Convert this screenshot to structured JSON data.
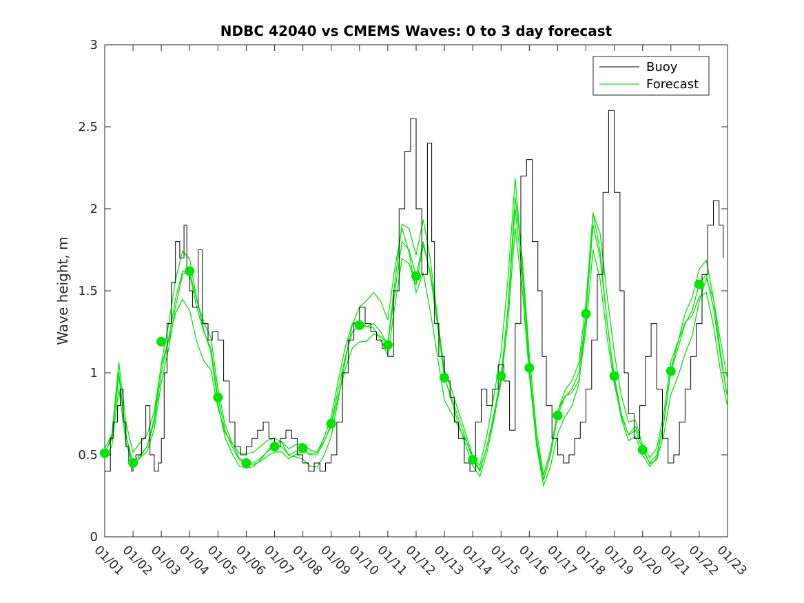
{
  "chart_data": {
    "type": "line",
    "title": "NDBC 42040 vs CMEMS Waves: 0 to 3 day forecast",
    "xlabel": "",
    "ylabel": "Wave height, m",
    "xlim": [
      0,
      22
    ],
    "ylim": [
      0,
      3
    ],
    "x_tick_labels": [
      "01/01",
      "01/02",
      "01/03",
      "01/04",
      "01/05",
      "01/06",
      "01/07",
      "01/08",
      "01/09",
      "01/10",
      "01/11",
      "01/12",
      "01/13",
      "01/14",
      "01/15",
      "01/16",
      "01/17",
      "01/18",
      "01/19",
      "01/20",
      "01/21",
      "01/22",
      "01/23"
    ],
    "y_ticks": [
      0,
      0.5,
      1,
      1.5,
      2,
      2.5,
      3
    ],
    "y_tick_labels": [
      "0",
      "0.5",
      "1",
      "1.5",
      "2",
      "2.5",
      "3"
    ],
    "legend": {
      "position": "top-right",
      "entries": [
        "Buoy",
        "Forecast"
      ]
    },
    "colors": {
      "buoy": "#000000",
      "forecast": "#00e600",
      "axis": "#262626"
    },
    "series": [
      {
        "name": "Buoy",
        "x": [
          0,
          0.2,
          0.3,
          0.45,
          0.55,
          0.65,
          0.75,
          0.85,
          0.95,
          1.0,
          1.1,
          1.3,
          1.45,
          1.6,
          1.75,
          1.9,
          2.0,
          2.1,
          2.2,
          2.35,
          2.5,
          2.65,
          2.8,
          2.9,
          3.0,
          3.1,
          3.3,
          3.45,
          3.65,
          3.8,
          4.0,
          4.2,
          4.4,
          4.6,
          4.8,
          5.0,
          5.2,
          5.4,
          5.6,
          5.8,
          6.0,
          6.2,
          6.4,
          6.6,
          6.8,
          7.0,
          7.2,
          7.4,
          7.6,
          7.8,
          8.0,
          8.2,
          8.4,
          8.6,
          8.8,
          9.0,
          9.2,
          9.4,
          9.6,
          9.8,
          10.0,
          10.2,
          10.4,
          10.6,
          10.8,
          11.0,
          11.2,
          11.4,
          11.55,
          11.65,
          11.8,
          12.0,
          12.2,
          12.35,
          12.5,
          12.7,
          12.9,
          13.1,
          13.3,
          13.5,
          13.7,
          13.9,
          14.1,
          14.3,
          14.5,
          14.7,
          14.9,
          15.1,
          15.3,
          15.45,
          15.6,
          15.8,
          16.0,
          16.2,
          16.4,
          16.6,
          16.8,
          17.0,
          17.2,
          17.4,
          17.6,
          17.8,
          18.0,
          18.2,
          18.35,
          18.5,
          18.7,
          18.9,
          19.1,
          19.3,
          19.5,
          19.7,
          19.9,
          20.1,
          20.3,
          20.5,
          20.7,
          20.9,
          21.1,
          21.3,
          21.5,
          21.7,
          21.85
        ],
        "values": [
          0.4,
          0.6,
          0.7,
          0.8,
          0.9,
          0.7,
          0.55,
          0.45,
          0.4,
          0.45,
          0.5,
          0.6,
          0.8,
          0.5,
          0.4,
          0.45,
          0.6,
          1.0,
          1.3,
          1.55,
          1.8,
          1.7,
          1.9,
          1.6,
          1.5,
          1.4,
          1.75,
          1.3,
          1.2,
          1.25,
          1.2,
          0.95,
          0.7,
          0.55,
          0.5,
          0.55,
          0.6,
          0.65,
          0.7,
          0.6,
          0.55,
          0.6,
          0.65,
          0.6,
          0.5,
          0.45,
          0.4,
          0.45,
          0.4,
          0.45,
          0.5,
          0.7,
          1.0,
          1.2,
          1.3,
          1.4,
          1.3,
          1.25,
          1.2,
          1.15,
          1.1,
          1.5,
          2.0,
          2.35,
          2.55,
          2.0,
          1.6,
          2.4,
          1.8,
          1.3,
          1.1,
          0.95,
          0.85,
          0.7,
          0.6,
          0.45,
          0.4,
          0.7,
          0.9,
          0.8,
          0.9,
          1.05,
          0.95,
          0.65,
          1.3,
          2.2,
          2.3,
          1.8,
          1.5,
          1.1,
          0.8,
          0.6,
          0.5,
          0.45,
          0.5,
          0.6,
          0.7,
          0.9,
          1.2,
          1.6,
          2.1,
          2.6,
          2.1,
          1.5,
          1.0,
          0.75,
          0.6,
          0.8,
          1.1,
          1.3,
          0.9,
          0.6,
          0.45,
          0.5,
          0.7,
          0.9,
          1.1,
          1.3,
          1.6,
          1.9,
          2.05,
          1.9,
          1.7
        ]
      },
      {
        "name": "Forecast",
        "x": [
          0,
          0.25,
          0.5,
          0.75,
          1.0,
          1.25,
          1.5,
          1.75,
          2.0,
          2.25,
          2.5,
          2.75,
          3.0,
          3.25,
          3.5,
          3.75,
          4.0,
          4.25,
          4.5,
          4.75,
          5.0,
          5.25,
          5.5,
          5.75,
          6.0,
          6.25,
          6.5,
          6.75,
          7.0,
          7.25,
          7.5,
          7.75,
          8.0,
          8.25,
          8.5,
          8.75,
          9.0,
          9.25,
          9.5,
          9.75,
          10.0,
          10.25,
          10.5,
          10.75,
          11.0,
          11.25,
          11.5,
          11.75,
          12.0,
          12.25,
          12.5,
          12.75,
          13.0,
          13.25,
          13.5,
          13.75,
          14.0,
          14.25,
          14.5,
          14.75,
          15.0,
          15.25,
          15.5,
          15.75,
          16.0,
          16.25,
          16.5,
          16.75,
          17.0,
          17.25,
          17.5,
          17.75,
          18.0,
          18.25,
          18.5,
          18.75,
          19.0,
          19.25,
          19.5,
          19.75,
          20.0,
          20.25,
          20.5,
          20.75,
          21.0,
          21.25,
          21.5,
          21.75,
          22.0
        ],
        "values": [
          0.51,
          0.6,
          0.98,
          0.62,
          0.45,
          0.5,
          0.55,
          0.7,
          1.0,
          1.2,
          1.45,
          1.62,
          1.6,
          1.4,
          1.25,
          1.15,
          0.85,
          0.65,
          0.55,
          0.47,
          0.45,
          0.45,
          0.48,
          0.52,
          0.55,
          0.55,
          0.5,
          0.52,
          0.53,
          0.5,
          0.5,
          0.58,
          0.69,
          0.9,
          1.1,
          1.25,
          1.29,
          1.28,
          1.3,
          1.25,
          1.17,
          1.5,
          1.8,
          1.75,
          1.59,
          1.8,
          1.6,
          1.3,
          0.97,
          0.85,
          0.72,
          0.6,
          0.47,
          0.4,
          0.55,
          0.75,
          0.98,
          1.4,
          2.0,
          1.6,
          1.03,
          0.6,
          0.35,
          0.5,
          0.74,
          0.85,
          0.9,
          1.0,
          1.36,
          1.9,
          1.7,
          1.3,
          0.98,
          0.75,
          0.62,
          0.65,
          0.53,
          0.45,
          0.5,
          0.7,
          1.01,
          1.15,
          1.3,
          1.38,
          1.54,
          1.6,
          1.4,
          1.1,
          0.85
        ],
        "band_offsets": [
          0,
          -0.08,
          0.06,
          -0.15
        ]
      },
      {
        "name": "",
        "type": "scatter",
        "x": [
          0,
          1,
          2,
          3,
          4,
          5,
          6,
          7,
          8,
          9,
          10,
          11,
          12,
          13,
          14,
          15,
          16,
          17,
          18,
          19,
          20,
          21
        ],
        "values": [
          0.51,
          0.45,
          1.19,
          1.62,
          0.85,
          0.45,
          0.55,
          0.54,
          0.69,
          1.29,
          1.17,
          1.59,
          0.97,
          0.47,
          0.98,
          1.03,
          0.74,
          1.36,
          0.98,
          0.53,
          1.01,
          1.54
        ]
      }
    ]
  }
}
